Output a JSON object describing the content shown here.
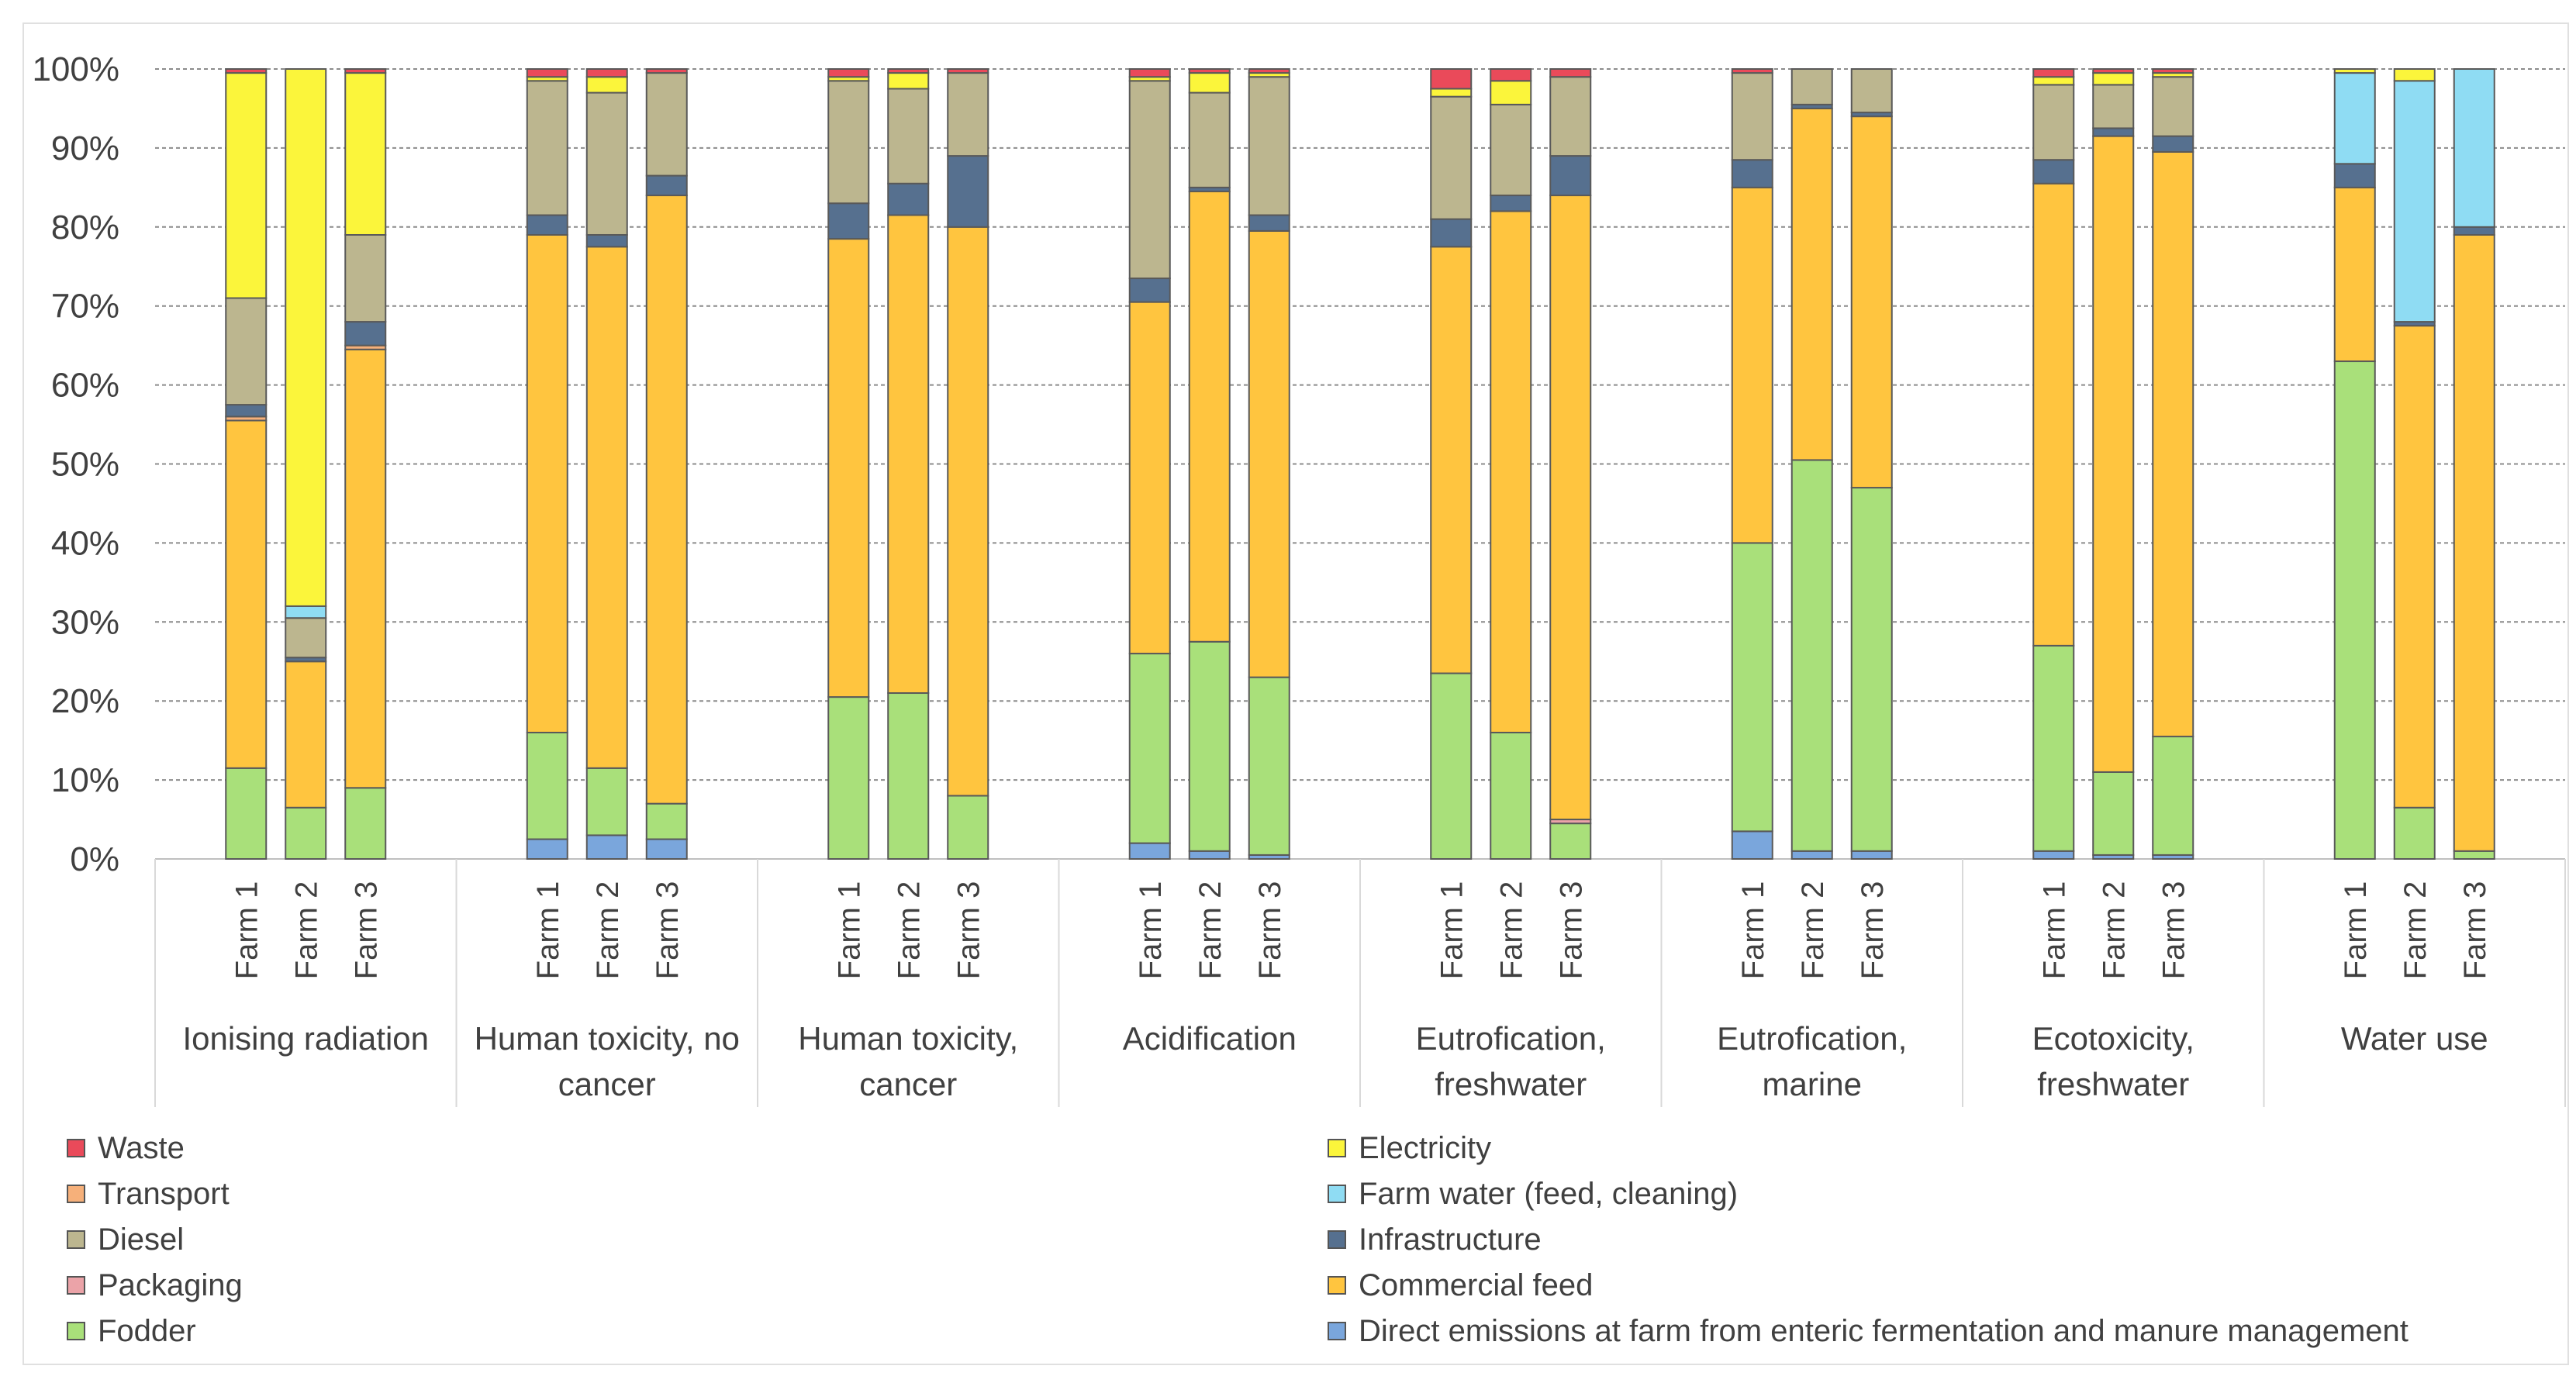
{
  "chart_data": {
    "type": "bar",
    "stacked": true,
    "percent": true,
    "y_ticks": [
      "0%",
      "10%",
      "20%",
      "30%",
      "40%",
      "50%",
      "60%",
      "70%",
      "80%",
      "90%",
      "100%"
    ],
    "ylim": [
      0,
      100
    ],
    "grid": true,
    "legend_position": "bottom",
    "group_labels": [
      [
        "Ionising radiation"
      ],
      [
        "Human toxicity, no",
        "cancer"
      ],
      [
        "Human toxicity,",
        "cancer"
      ],
      [
        "Acidification"
      ],
      [
        "Eutrofication,",
        "freshwater"
      ],
      [
        "Eutrofication,",
        "marine"
      ],
      [
        "Ecotoxicity,",
        "freshwater"
      ],
      [
        "Water use"
      ]
    ],
    "bar_labels": [
      "Farm 1",
      "Farm 2",
      "Farm 3"
    ],
    "series_order": [
      "Direct emissions",
      "Fodder",
      "Packaging",
      "Commercial feed",
      "Transport",
      "Infrastructure",
      "Diesel",
      "Farm water",
      "Electricity",
      "Waste"
    ],
    "series_colors": {
      "Direct emissions": "#7aa6dc",
      "Fodder": "#a9e07a",
      "Packaging": "#eba3a8",
      "Commercial feed": "#ffc53f",
      "Transport": "#f6b07a",
      "Infrastructure": "#56708f",
      "Diesel": "#bcb68f",
      "Farm water": "#8fdcf3",
      "Electricity": "#fbf53b",
      "Waste": "#ea4a5a"
    },
    "groups": [
      {
        "name": "Ionising radiation",
        "bars": [
          {
            "Direct emissions": 0,
            "Fodder": 11.5,
            "Packaging": 0,
            "Commercial feed": 44,
            "Transport": 0.5,
            "Infrastructure": 1.5,
            "Diesel": 13.5,
            "Farm water": 0,
            "Electricity": 28.5,
            "Waste": 0.5
          },
          {
            "Direct emissions": 0,
            "Fodder": 6.5,
            "Packaging": 0,
            "Commercial feed": 18.5,
            "Transport": 0,
            "Infrastructure": 0.5,
            "Diesel": 5,
            "Farm water": 1.5,
            "Electricity": 68,
            "Waste": 0
          },
          {
            "Direct emissions": 0,
            "Fodder": 9,
            "Packaging": 0,
            "Commercial feed": 55.5,
            "Transport": 0.5,
            "Infrastructure": 3,
            "Diesel": 11,
            "Farm water": 0,
            "Electricity": 20.5,
            "Waste": 0.5
          }
        ]
      },
      {
        "name": "Human toxicity, no cancer",
        "bars": [
          {
            "Direct emissions": 2.5,
            "Fodder": 13.5,
            "Packaging": 0,
            "Commercial feed": 63,
            "Transport": 0,
            "Infrastructure": 2.5,
            "Diesel": 17,
            "Farm water": 0,
            "Electricity": 0.5,
            "Waste": 1
          },
          {
            "Direct emissions": 3,
            "Fodder": 8.5,
            "Packaging": 0,
            "Commercial feed": 66,
            "Transport": 0,
            "Infrastructure": 1.5,
            "Diesel": 18,
            "Farm water": 0,
            "Electricity": 2,
            "Waste": 1
          },
          {
            "Direct emissions": 2.5,
            "Fodder": 4.5,
            "Packaging": 0,
            "Commercial feed": 77,
            "Transport": 0,
            "Infrastructure": 2.5,
            "Diesel": 13,
            "Farm water": 0,
            "Electricity": 0,
            "Waste": 0.5
          }
        ]
      },
      {
        "name": "Human toxicity, cancer",
        "bars": [
          {
            "Direct emissions": 0,
            "Fodder": 20.5,
            "Packaging": 0,
            "Commercial feed": 58,
            "Transport": 0,
            "Infrastructure": 4.5,
            "Diesel": 15.5,
            "Farm water": 0,
            "Electricity": 0.5,
            "Waste": 1
          },
          {
            "Direct emissions": 0,
            "Fodder": 21,
            "Packaging": 0,
            "Commercial feed": 60.5,
            "Transport": 0,
            "Infrastructure": 4,
            "Diesel": 12,
            "Farm water": 0,
            "Electricity": 2,
            "Waste": 0.5
          },
          {
            "Direct emissions": 0,
            "Fodder": 8,
            "Packaging": 0,
            "Commercial feed": 72,
            "Transport": 0,
            "Infrastructure": 9,
            "Diesel": 10.5,
            "Farm water": 0,
            "Electricity": 0,
            "Waste": 0.5
          }
        ]
      },
      {
        "name": "Acidification",
        "bars": [
          {
            "Direct emissions": 2,
            "Fodder": 24,
            "Packaging": 0,
            "Commercial feed": 44.5,
            "Transport": 0,
            "Infrastructure": 3,
            "Diesel": 25,
            "Farm water": 0,
            "Electricity": 0.5,
            "Waste": 1
          },
          {
            "Direct emissions": 1,
            "Fodder": 26.5,
            "Packaging": 0,
            "Commercial feed": 57,
            "Transport": 0,
            "Infrastructure": 0.5,
            "Diesel": 12,
            "Farm water": 0,
            "Electricity": 2.5,
            "Waste": 0.5
          },
          {
            "Direct emissions": 0.5,
            "Fodder": 22.5,
            "Packaging": 0,
            "Commercial feed": 56.5,
            "Transport": 0,
            "Infrastructure": 2,
            "Diesel": 17.5,
            "Farm water": 0,
            "Electricity": 0.5,
            "Waste": 0.5
          }
        ]
      },
      {
        "name": "Eutrofication, freshwater",
        "bars": [
          {
            "Direct emissions": 0,
            "Fodder": 23.5,
            "Packaging": 0,
            "Commercial feed": 54,
            "Transport": 0,
            "Infrastructure": 3.5,
            "Diesel": 15.5,
            "Farm water": 0,
            "Electricity": 1,
            "Waste": 2.5
          },
          {
            "Direct emissions": 0,
            "Fodder": 16,
            "Packaging": 0,
            "Commercial feed": 66,
            "Transport": 0,
            "Infrastructure": 2,
            "Diesel": 11.5,
            "Farm water": 0,
            "Electricity": 3,
            "Waste": 1.5
          },
          {
            "Direct emissions": 0,
            "Fodder": 4.5,
            "Packaging": 0.5,
            "Commercial feed": 79,
            "Transport": 0,
            "Infrastructure": 5,
            "Diesel": 10,
            "Farm water": 0,
            "Electricity": 0,
            "Waste": 1
          }
        ]
      },
      {
        "name": "Eutrofication, marine",
        "bars": [
          {
            "Direct emissions": 3.5,
            "Fodder": 36.5,
            "Packaging": 0,
            "Commercial feed": 45,
            "Transport": 0,
            "Infrastructure": 3.5,
            "Diesel": 11,
            "Farm water": 0,
            "Electricity": 0,
            "Waste": 0.5
          },
          {
            "Direct emissions": 1,
            "Fodder": 49.5,
            "Packaging": 0,
            "Commercial feed": 44.5,
            "Transport": 0,
            "Infrastructure": 0.5,
            "Diesel": 4.5,
            "Farm water": 0,
            "Electricity": 0,
            "Waste": 0
          },
          {
            "Direct emissions": 1,
            "Fodder": 46,
            "Packaging": 0,
            "Commercial feed": 47,
            "Transport": 0,
            "Infrastructure": 0.5,
            "Diesel": 5.5,
            "Farm water": 0,
            "Electricity": 0,
            "Waste": 0
          }
        ]
      },
      {
        "name": "Ecotoxicity, freshwater",
        "bars": [
          {
            "Direct emissions": 1,
            "Fodder": 26,
            "Packaging": 0,
            "Commercial feed": 58.5,
            "Transport": 0,
            "Infrastructure": 3,
            "Diesel": 9.5,
            "Farm water": 0,
            "Electricity": 1,
            "Waste": 1
          },
          {
            "Direct emissions": 0.5,
            "Fodder": 10.5,
            "Packaging": 0,
            "Commercial feed": 80.5,
            "Transport": 0,
            "Infrastructure": 1,
            "Diesel": 5.5,
            "Farm water": 0,
            "Electricity": 1.5,
            "Waste": 0.5
          },
          {
            "Direct emissions": 0.5,
            "Fodder": 15,
            "Packaging": 0,
            "Commercial feed": 74,
            "Transport": 0,
            "Infrastructure": 2,
            "Diesel": 7.5,
            "Farm water": 0,
            "Electricity": 0.5,
            "Waste": 0.5
          }
        ]
      },
      {
        "name": "Water use",
        "bars": [
          {
            "Direct emissions": 0,
            "Fodder": 63,
            "Packaging": 0,
            "Commercial feed": 22,
            "Transport": 0,
            "Infrastructure": 3,
            "Diesel": 0,
            "Farm water": 11.5,
            "Electricity": 0.5,
            "Waste": 0
          },
          {
            "Direct emissions": 0,
            "Fodder": 6.5,
            "Packaging": 0,
            "Commercial feed": 61,
            "Transport": 0,
            "Infrastructure": 0.5,
            "Diesel": 0,
            "Farm water": 30.5,
            "Electricity": 1.5,
            "Waste": 0
          },
          {
            "Direct emissions": 0,
            "Fodder": 1,
            "Packaging": 0,
            "Commercial feed": 78,
            "Transport": 0,
            "Infrastructure": 1,
            "Diesel": 0,
            "Farm water": 20,
            "Electricity": 0,
            "Waste": 0
          }
        ]
      }
    ],
    "legend": {
      "left": [
        {
          "key": "Waste",
          "label": "Waste"
        },
        {
          "key": "Transport",
          "label": "Transport"
        },
        {
          "key": "Diesel",
          "label": "Diesel"
        },
        {
          "key": "Packaging",
          "label": "Packaging"
        },
        {
          "key": "Fodder",
          "label": "Fodder"
        }
      ],
      "right": [
        {
          "key": "Electricity",
          "label": "Electricity"
        },
        {
          "key": "Farm water",
          "label": "Farm water (feed, cleaning)"
        },
        {
          "key": "Infrastructure",
          "label": "Infrastructure"
        },
        {
          "key": "Commercial feed",
          "label": "Commercial feed"
        },
        {
          "key": "Direct emissions",
          "label": "Direct emissions at farm from enteric fermentation and manure management"
        }
      ]
    }
  }
}
